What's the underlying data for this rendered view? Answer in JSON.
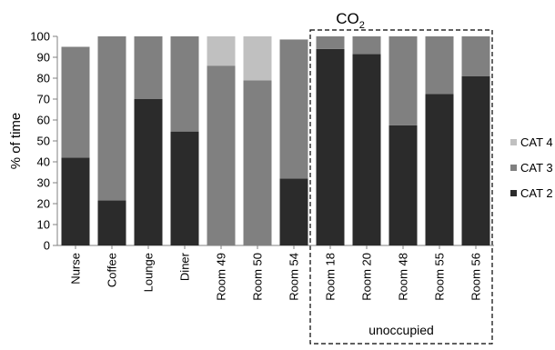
{
  "chart_data": {
    "type": "bar",
    "stacked": true,
    "title": "CO",
    "title_subscript": "2",
    "xlabel": "",
    "ylabel": "% of time",
    "ylim": [
      0,
      100
    ],
    "yticks": [
      0,
      10,
      20,
      30,
      40,
      50,
      60,
      70,
      80,
      90,
      100
    ],
    "grid": false,
    "legend_position": "right",
    "categories": [
      "Nurse",
      "Coffee",
      "Lounge",
      "Diner",
      "Room 49",
      "Room 50",
      "Room 54",
      "Room  18",
      "Room 20",
      "Room 48",
      "Room 55",
      "Room 56"
    ],
    "series": [
      {
        "name": "CAT 2",
        "color": "#2b2b2b",
        "values": [
          42,
          21.5,
          70,
          54.5,
          0,
          0,
          32,
          94,
          91.5,
          57.5,
          72.5,
          81
        ]
      },
      {
        "name": "CAT 3",
        "color": "#808080",
        "values": [
          53,
          78.5,
          30,
          45.5,
          86,
          79,
          66.5,
          6,
          8.5,
          42.5,
          27.5,
          19
        ]
      },
      {
        "name": "CAT 4",
        "color": "#c0c0c0",
        "values": [
          0,
          0,
          0,
          0,
          14,
          21,
          0,
          0,
          0,
          0,
          0,
          0
        ]
      }
    ],
    "annotation": {
      "label": "unoccupied",
      "from_category": "Room  18",
      "to_category": "Room 56",
      "style": "dashed-box"
    }
  }
}
